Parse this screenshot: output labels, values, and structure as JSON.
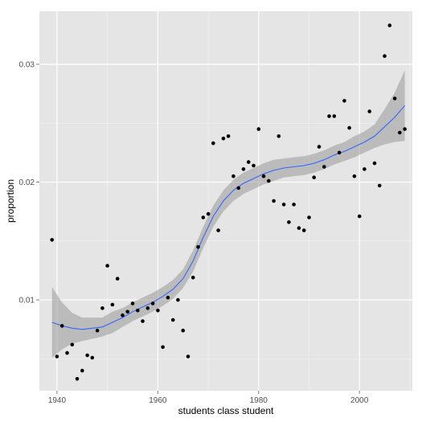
{
  "chart_data": {
    "type": "scatter",
    "title": "",
    "xlabel": "students class student",
    "ylabel": "proportion",
    "xlim": [
      1936.5,
      2010.5
    ],
    "ylim": [
      0.0023,
      0.0345
    ],
    "x_ticks": [
      1940,
      1960,
      1980,
      2000
    ],
    "x_tick_labels": [
      "1940",
      "1960",
      "1980",
      "2000"
    ],
    "y_ticks": [
      0.01,
      0.02,
      0.03
    ],
    "y_tick_labels": [
      "0.01",
      "0.02",
      "0.03"
    ],
    "grid": true,
    "legend": "none",
    "colors": {
      "panel": "#e5e5e5",
      "grid_major": "#ffffff",
      "grid_minor": "#f2f2f2",
      "points": "#000000",
      "smooth_line": "#3366ff",
      "confidence_band": "#999999"
    },
    "series": [
      {
        "kind": "points",
        "points": [
          [
            1939,
            0.0151
          ],
          [
            1940,
            0.0052
          ],
          [
            1941,
            0.0078
          ],
          [
            1942,
            0.0055
          ],
          [
            1943,
            0.0062
          ],
          [
            1944,
            0.0033
          ],
          [
            1945,
            0.004
          ],
          [
            1946,
            0.0053
          ],
          [
            1947,
            0.0051
          ],
          [
            1948,
            0.0074
          ],
          [
            1949,
            0.0093
          ],
          [
            1950,
            0.0129
          ],
          [
            1951,
            0.0096
          ],
          [
            1952,
            0.0118
          ],
          [
            1953,
            0.0087
          ],
          [
            1954,
            0.009
          ],
          [
            1955,
            0.0097
          ],
          [
            1956,
            0.0091
          ],
          [
            1957,
            0.0082
          ],
          [
            1958,
            0.0093
          ],
          [
            1959,
            0.0097
          ],
          [
            1960,
            0.0091
          ],
          [
            1961,
            0.006
          ],
          [
            1962,
            0.0102
          ],
          [
            1963,
            0.0083
          ],
          [
            1964,
            0.01
          ],
          [
            1965,
            0.0074
          ],
          [
            1966,
            0.0052
          ],
          [
            1967,
            0.0119
          ],
          [
            1968,
            0.0145
          ],
          [
            1969,
            0.017
          ],
          [
            1970,
            0.0173
          ],
          [
            1971,
            0.0233
          ],
          [
            1972,
            0.0159
          ],
          [
            1973,
            0.0237
          ],
          [
            1974,
            0.0239
          ],
          [
            1975,
            0.0205
          ],
          [
            1976,
            0.0195
          ],
          [
            1977,
            0.0211
          ],
          [
            1978,
            0.0217
          ],
          [
            1979,
            0.0214
          ],
          [
            1980,
            0.0245
          ],
          [
            1981,
            0.0205
          ],
          [
            1982,
            0.0201
          ],
          [
            1983,
            0.0184
          ],
          [
            1984,
            0.0239
          ],
          [
            1985,
            0.0181
          ],
          [
            1986,
            0.0166
          ],
          [
            1987,
            0.0181
          ],
          [
            1988,
            0.0161
          ],
          [
            1989,
            0.0159
          ],
          [
            1990,
            0.017
          ],
          [
            1991,
            0.0204
          ],
          [
            1992,
            0.023
          ],
          [
            1993,
            0.0213
          ],
          [
            1994,
            0.0256
          ],
          [
            1995,
            0.0256
          ],
          [
            1996,
            0.0225
          ],
          [
            1997,
            0.0269
          ],
          [
            1998,
            0.0246
          ],
          [
            1999,
            0.0205
          ],
          [
            2000,
            0.0171
          ],
          [
            2001,
            0.0211
          ],
          [
            2002,
            0.026
          ],
          [
            2003,
            0.0216
          ],
          [
            2004,
            0.0197
          ],
          [
            2005,
            0.0307
          ],
          [
            2006,
            0.0333
          ],
          [
            2007,
            0.0271
          ],
          [
            2008,
            0.0242
          ],
          [
            2009,
            0.0245
          ]
        ]
      },
      {
        "kind": "smooth",
        "fit": [
          [
            1939,
            0.0081
          ],
          [
            1941,
            0.0078
          ],
          [
            1943,
            0.0076
          ],
          [
            1945,
            0.0075
          ],
          [
            1947,
            0.0076
          ],
          [
            1949,
            0.0077
          ],
          [
            1951,
            0.0081
          ],
          [
            1953,
            0.0085
          ],
          [
            1955,
            0.009
          ],
          [
            1957,
            0.0094
          ],
          [
            1959,
            0.0098
          ],
          [
            1961,
            0.0103
          ],
          [
            1963,
            0.0109
          ],
          [
            1965,
            0.0118
          ],
          [
            1967,
            0.0133
          ],
          [
            1969,
            0.0153
          ],
          [
            1971,
            0.0171
          ],
          [
            1973,
            0.0184
          ],
          [
            1975,
            0.0193
          ],
          [
            1977,
            0.0199
          ],
          [
            1979,
            0.0203
          ],
          [
            1981,
            0.0207
          ],
          [
            1983,
            0.021
          ],
          [
            1985,
            0.0212
          ],
          [
            1987,
            0.0213
          ],
          [
            1989,
            0.0214
          ],
          [
            1991,
            0.0216
          ],
          [
            1993,
            0.0219
          ],
          [
            1995,
            0.0223
          ],
          [
            1997,
            0.0226
          ],
          [
            1999,
            0.023
          ],
          [
            2001,
            0.0234
          ],
          [
            2003,
            0.0239
          ],
          [
            2005,
            0.0247
          ],
          [
            2007,
            0.0255
          ],
          [
            2009,
            0.0265
          ]
        ],
        "lower": [
          [
            1939,
            0.0051
          ],
          [
            1941,
            0.0058
          ],
          [
            1943,
            0.0063
          ],
          [
            1945,
            0.0065
          ],
          [
            1947,
            0.0067
          ],
          [
            1949,
            0.0069
          ],
          [
            1951,
            0.0072
          ],
          [
            1953,
            0.0077
          ],
          [
            1955,
            0.0082
          ],
          [
            1957,
            0.0086
          ],
          [
            1959,
            0.009
          ],
          [
            1961,
            0.0095
          ],
          [
            1963,
            0.0101
          ],
          [
            1965,
            0.011
          ],
          [
            1967,
            0.0124
          ],
          [
            1969,
            0.0144
          ],
          [
            1971,
            0.0162
          ],
          [
            1973,
            0.0175
          ],
          [
            1975,
            0.0184
          ],
          [
            1977,
            0.019
          ],
          [
            1979,
            0.0194
          ],
          [
            1981,
            0.0198
          ],
          [
            1983,
            0.0201
          ],
          [
            1985,
            0.0204
          ],
          [
            1987,
            0.0205
          ],
          [
            1989,
            0.0206
          ],
          [
            1991,
            0.0208
          ],
          [
            1993,
            0.0211
          ],
          [
            1995,
            0.0215
          ],
          [
            1997,
            0.0218
          ],
          [
            1999,
            0.0221
          ],
          [
            2001,
            0.0225
          ],
          [
            2003,
            0.0229
          ],
          [
            2005,
            0.0232
          ],
          [
            2007,
            0.0234
          ],
          [
            2009,
            0.0235
          ]
        ],
        "upper": [
          [
            1939,
            0.0111
          ],
          [
            1941,
            0.0098
          ],
          [
            1943,
            0.0089
          ],
          [
            1945,
            0.0085
          ],
          [
            1947,
            0.0085
          ],
          [
            1949,
            0.0085
          ],
          [
            1951,
            0.009
          ],
          [
            1953,
            0.0093
          ],
          [
            1955,
            0.0098
          ],
          [
            1957,
            0.0102
          ],
          [
            1959,
            0.0106
          ],
          [
            1961,
            0.0111
          ],
          [
            1963,
            0.0117
          ],
          [
            1965,
            0.0126
          ],
          [
            1967,
            0.0142
          ],
          [
            1969,
            0.0162
          ],
          [
            1971,
            0.018
          ],
          [
            1973,
            0.0193
          ],
          [
            1975,
            0.0202
          ],
          [
            1977,
            0.0208
          ],
          [
            1979,
            0.0212
          ],
          [
            1981,
            0.0216
          ],
          [
            1983,
            0.0219
          ],
          [
            1985,
            0.022
          ],
          [
            1987,
            0.0221
          ],
          [
            1989,
            0.0222
          ],
          [
            1991,
            0.0224
          ],
          [
            1993,
            0.0227
          ],
          [
            1995,
            0.0231
          ],
          [
            1997,
            0.0234
          ],
          [
            1999,
            0.0239
          ],
          [
            2001,
            0.0243
          ],
          [
            2003,
            0.0249
          ],
          [
            2005,
            0.0262
          ],
          [
            2007,
            0.0276
          ],
          [
            2009,
            0.0295
          ]
        ]
      }
    ]
  }
}
